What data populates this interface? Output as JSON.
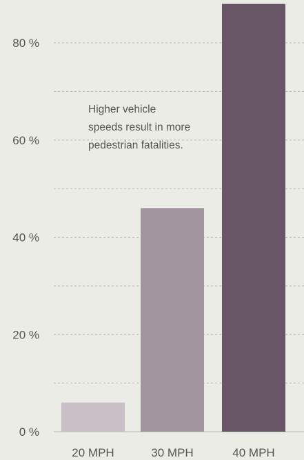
{
  "chart_data": {
    "type": "bar",
    "categories": [
      "20 MPH",
      "30 MPH",
      "40 MPH"
    ],
    "values": [
      6,
      46,
      88
    ],
    "ylim": [
      0,
      88
    ],
    "yticks": [
      0,
      20,
      40,
      60,
      80
    ],
    "ytick_labels": [
      "0 %",
      "20 %",
      "40 %",
      "60 %",
      "80 %"
    ],
    "grid": "dashed horizontal",
    "colors": [
      "#c9bfc7",
      "#a3959f",
      "#685566"
    ],
    "annotation": "Higher vehicle speeds result in more pedestrian fatalities."
  }
}
